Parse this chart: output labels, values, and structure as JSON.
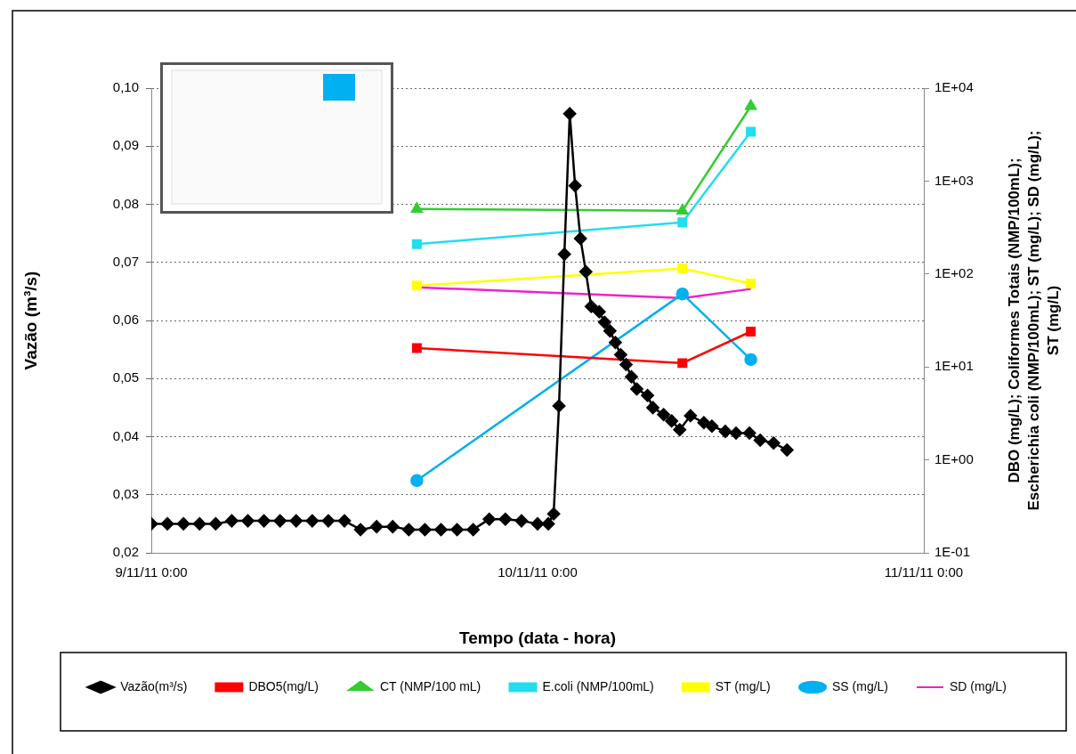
{
  "chart_data": {
    "type": "line",
    "xlabel": "Tempo (data - hora)",
    "ylabel": "Vazão (m³/s)",
    "y2label": "DBO (mg/L); Coliformes Totais (NMP/100mL); Escherichia coli (NMP/100mL); ST (mg/L); SD (mg/L); ST (mg/L)",
    "xlim": [
      "--11-09T00:00",
      "--11-11T00:00"
    ],
    "xticks": [
      {
        "value": "--11-09T00:00",
        "label": "9/11/11 0:00"
      },
      {
        "value": "--11-10T00:00",
        "label": "10/11/11 0:00"
      },
      {
        "value": "--11-11T00:00",
        "label": "11/11/11 0:00"
      }
    ],
    "ylim": [
      0.02,
      0.1
    ],
    "yticks": [
      {
        "value": 0.02,
        "label": "0,02"
      },
      {
        "value": 0.03,
        "label": "0,03"
      },
      {
        "value": 0.04,
        "label": "0,04"
      },
      {
        "value": 0.05,
        "label": "0,05"
      },
      {
        "value": 0.06,
        "label": "0,06"
      },
      {
        "value": 0.07,
        "label": "0,07"
      },
      {
        "value": 0.08,
        "label": "0,08"
      },
      {
        "value": 0.09,
        "label": "0,09"
      },
      {
        "value": 0.1,
        "label": "0,10"
      }
    ],
    "y2lim": [
      0.1,
      10000
    ],
    "y2ticks": [
      {
        "value": 0.1,
        "label": "1E-01"
      },
      {
        "value": 1,
        "label": "1E+00"
      },
      {
        "value": 10,
        "label": "1E+01"
      },
      {
        "value": 100,
        "label": "1E+02"
      },
      {
        "value": 1000,
        "label": "1E+03"
      },
      {
        "value": 10000,
        "label": "1E+04"
      }
    ],
    "log": "y2",
    "grid": "y",
    "legend": "bottom",
    "series": [
      {
        "name": "Vazão(m³/s)",
        "color": "#000000",
        "marker": "diamond",
        "x": [
          "--11-09T00:00",
          "--11-09T01:00",
          "--11-09T02:00",
          "--11-09T03:00",
          "--11-09T04:00",
          "--11-09T05:00",
          "--11-09T06:00",
          "--11-09T07:00",
          "--11-09T08:00",
          "--11-09T09:00",
          "--11-09T10:00",
          "--11-09T11:00",
          "--11-09T12:00",
          "--11-09T13:00",
          "--11-09T14:00",
          "--11-09T15:00",
          "--11-09T16:00",
          "--11-09T17:00",
          "--11-09T18:00",
          "--11-09T19:00",
          "--11-09T20:00",
          "--11-09T21:00",
          "--11-09T22:00",
          "--11-09T23:00",
          "--11-10T00:00",
          "--11-10T00:40",
          "--11-10T01:00",
          "--11-10T01:20",
          "--11-10T01:40",
          "--11-10T02:00",
          "--11-10T02:20",
          "--11-10T02:40",
          "--11-10T03:00",
          "--11-10T03:20",
          "--11-10T03:50",
          "--11-10T04:10",
          "--11-10T04:30",
          "--11-10T04:50",
          "--11-10T05:10",
          "--11-10T05:30",
          "--11-10T05:50",
          "--11-10T06:10",
          "--11-10T06:50",
          "--11-10T07:10",
          "--11-10T07:50",
          "--11-10T08:20",
          "--11-10T08:50",
          "--11-10T09:30",
          "--11-10T10:20",
          "--11-10T10:50",
          "--11-10T11:40",
          "--11-10T12:20",
          "--11-10T13:10",
          "--11-10T13:50",
          "--11-10T14:40",
          "--11-10T15:30"
        ],
        "values": [
          0.025,
          0.025,
          0.025,
          0.025,
          0.025,
          0.0255,
          0.0255,
          0.0255,
          0.0255,
          0.0255,
          0.0255,
          0.0255,
          0.0255,
          0.024,
          0.0245,
          0.0245,
          0.024,
          0.024,
          0.024,
          0.024,
          0.024,
          0.0258,
          0.0258,
          0.0255,
          0.025,
          0.025,
          0.0267,
          0.0453,
          0.0714,
          0.0956,
          0.0832,
          0.0741,
          0.0684,
          0.0624,
          0.0615,
          0.0597,
          0.0582,
          0.0562,
          0.0541,
          0.0524,
          0.0503,
          0.0482,
          0.0471,
          0.045,
          0.0438,
          0.0427,
          0.0412,
          0.0436,
          0.0424,
          0.0418,
          0.0409,
          0.0406,
          0.0406,
          0.0394,
          0.0389,
          0.0377
        ]
      },
      {
        "name": "DBO5(mg/L)",
        "color": "#ff0000",
        "marker": "square",
        "axis": "y2",
        "x": [
          "--11-09T16:30",
          "--11-10T09:00",
          "--11-10T13:15"
        ],
        "values": [
          16,
          11,
          24
        ]
      },
      {
        "name": "CT (NMP/100 mL)",
        "color": "#33cc33",
        "marker": "triangle",
        "axis": "y2",
        "x": [
          "--11-09T16:30",
          "--11-10T09:00",
          "--11-10T13:15"
        ],
        "values": [
          500,
          480,
          6400
        ]
      },
      {
        "name": "E.coli (NMP/100mL)",
        "color": "#22ddf0",
        "marker": "square",
        "axis": "y2",
        "x": [
          "--11-09T16:30",
          "--11-10T09:00",
          "--11-10T13:15"
        ],
        "values": [
          210,
          360,
          3400
        ]
      },
      {
        "name": "ST (mg/L)",
        "color": "#ffff00",
        "marker": "square",
        "axis": "y2",
        "x": [
          "--11-09T16:30",
          "--11-10T09:00",
          "--11-10T13:15"
        ],
        "values": [
          75,
          115,
          79
        ]
      },
      {
        "name": "SS (mg/L)",
        "color": "#00b0f0",
        "marker": "circle",
        "axis": "y2",
        "x": [
          "--11-09T16:30",
          "--11-10T09:00",
          "--11-10T13:15"
        ],
        "values": [
          0.6,
          61,
          12
        ]
      },
      {
        "name": "SD (mg/L)",
        "color": "#ee22cc",
        "marker": "none",
        "axis": "y2",
        "x": [
          "--11-09T16:30",
          "--11-10T09:00",
          "--11-10T13:15"
        ],
        "values": [
          72,
          55,
          69
        ]
      }
    ]
  }
}
